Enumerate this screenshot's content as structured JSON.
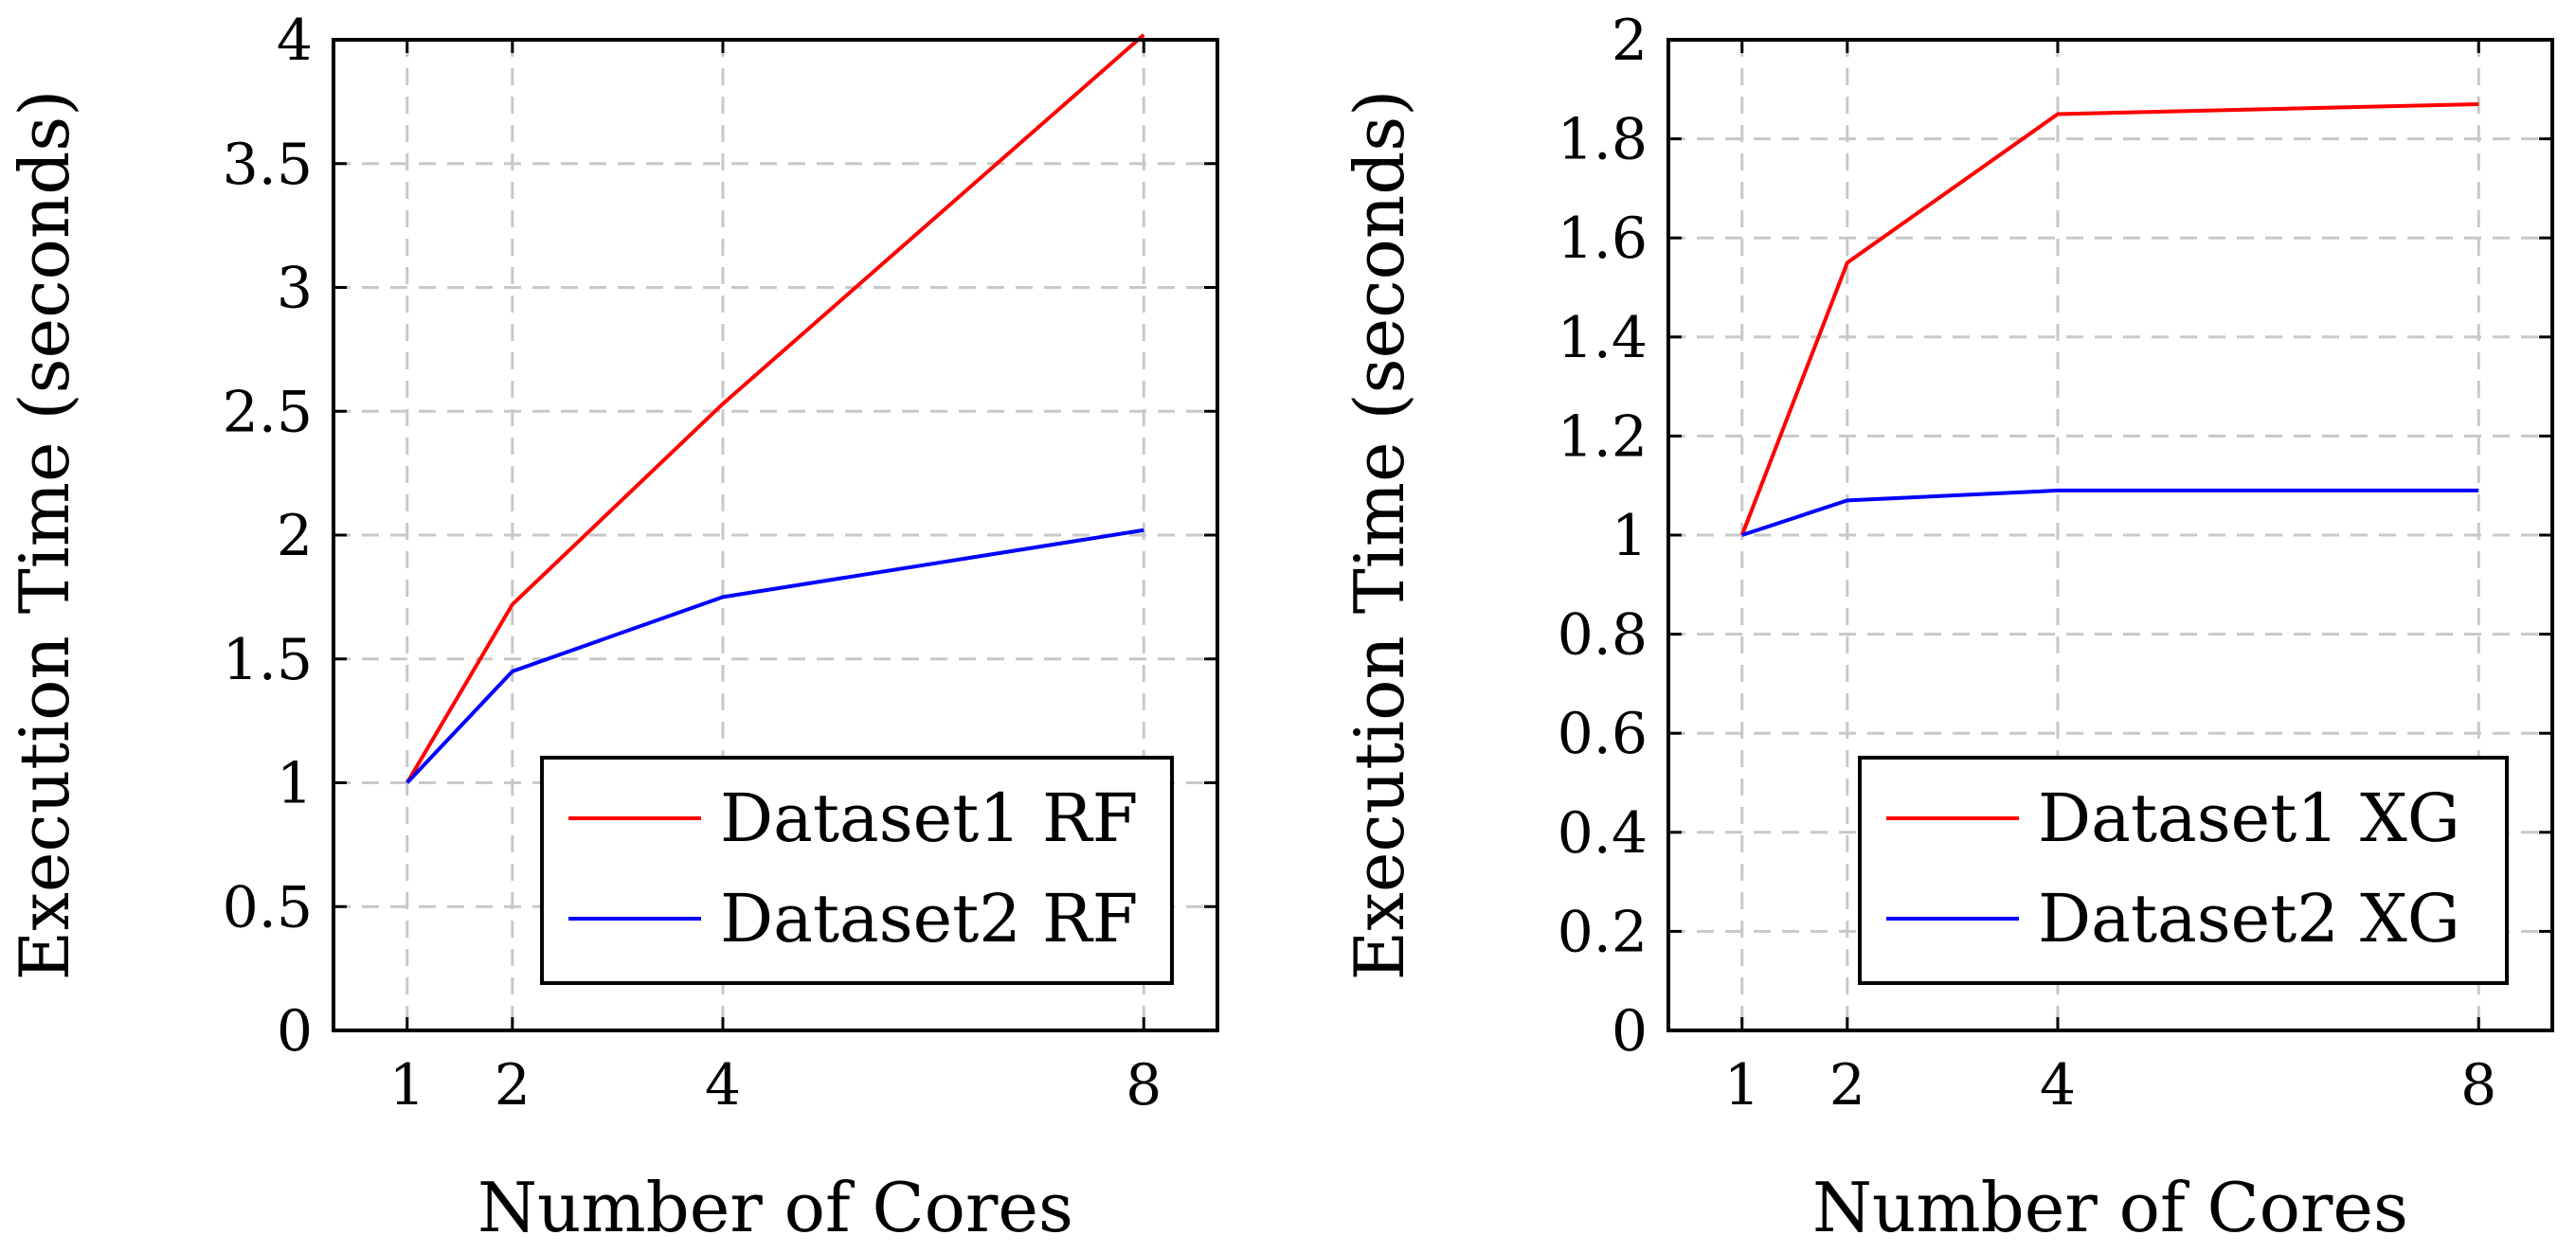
{
  "chart_data": [
    {
      "type": "line",
      "title": "",
      "xlabel": "Number of Cores",
      "ylabel": "Execution Time (seconds)",
      "x": [
        1,
        2,
        4,
        8
      ],
      "xticks": [
        "1",
        "2",
        "4",
        "8"
      ],
      "xlim": [
        0.3,
        8.7
      ],
      "ylim": [
        0,
        4
      ],
      "yticks": [
        "0",
        "0.5",
        "1",
        "1.5",
        "2",
        "2.5",
        "3",
        "3.5",
        "4"
      ],
      "grid": true,
      "legend_position": "bottom-right",
      "series": [
        {
          "name": "Dataset1 RF",
          "color": "#ff0000",
          "values": [
            1.0,
            1.72,
            2.53,
            4.02
          ]
        },
        {
          "name": "Dataset2 RF",
          "color": "#0000ff",
          "values": [
            1.0,
            1.45,
            1.75,
            2.02
          ]
        }
      ]
    },
    {
      "type": "line",
      "title": "",
      "xlabel": "Number of Cores",
      "ylabel": "Execution Time (seconds)",
      "x": [
        1,
        2,
        4,
        8
      ],
      "xticks": [
        "1",
        "2",
        "4",
        "8"
      ],
      "xlim": [
        0.3,
        8.7
      ],
      "ylim": [
        0,
        2
      ],
      "yticks": [
        "0",
        "0.2",
        "0.4",
        "0.6",
        "0.8",
        "1",
        "1.2",
        "1.4",
        "1.6",
        "1.8",
        "2"
      ],
      "grid": true,
      "legend_position": "bottom-right",
      "series": [
        {
          "name": "Dataset1 XG",
          "color": "#ff0000",
          "values": [
            1.0,
            1.55,
            1.85,
            1.87
          ]
        },
        {
          "name": "Dataset2 XG",
          "color": "#0000ff",
          "values": [
            1.0,
            1.07,
            1.09,
            1.09
          ]
        }
      ]
    }
  ]
}
